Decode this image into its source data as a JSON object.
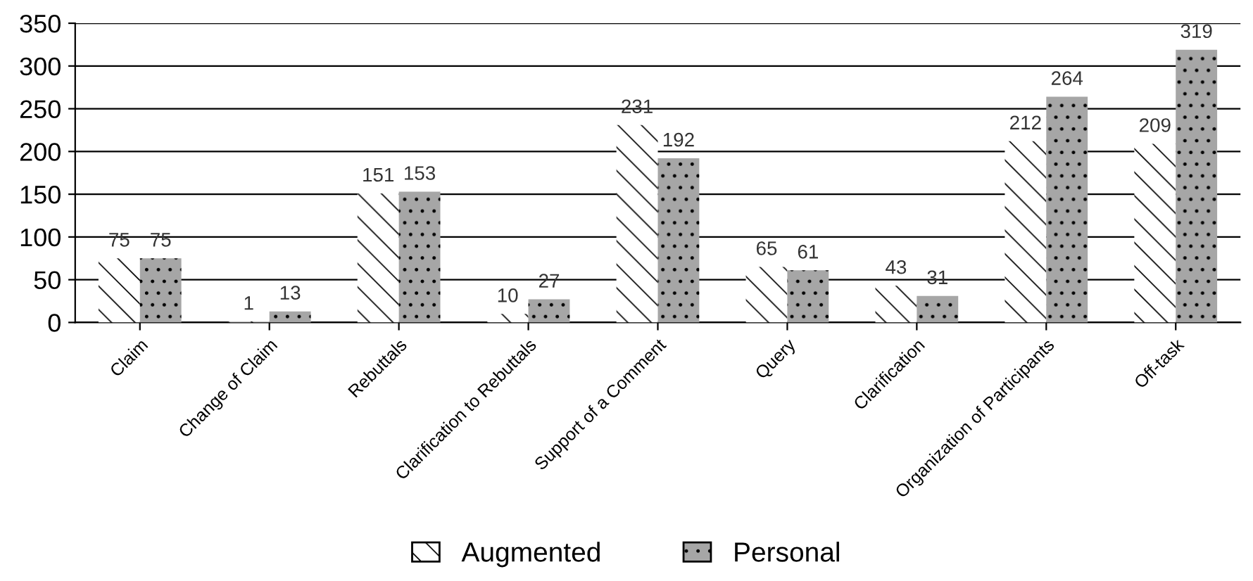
{
  "chart_data": {
    "type": "bar",
    "categories": [
      "Claim",
      "Change of Claim",
      "Rebuttals",
      "Clarification to Rebuttals",
      "Support of a Comment",
      "Query",
      "Clarification",
      "Organization of Participants",
      "Off-task"
    ],
    "series": [
      {
        "name": "Augmented",
        "color": "#ffffff",
        "values": [
          75,
          1,
          151,
          10,
          231,
          65,
          43,
          212,
          209
        ]
      },
      {
        "name": "Personal",
        "color": "#a6a6a6",
        "values": [
          75,
          13,
          153,
          27,
          192,
          61,
          31,
          264,
          319
        ]
      }
    ],
    "ylim": [
      0,
      350
    ],
    "yticks": [
      0,
      50,
      100,
      150,
      200,
      250,
      300,
      350
    ],
    "grid": "y",
    "legend": "bottom",
    "data_labels": true
  }
}
